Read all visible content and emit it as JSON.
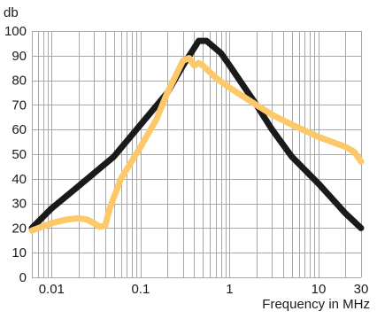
{
  "chart_data": {
    "type": "line",
    "title": "",
    "xlabel": "Frequency in MHz",
    "ylabel": "db",
    "xscale": "log",
    "xlim": [
      0.006,
      30
    ],
    "ylim": [
      0,
      100
    ],
    "grid": true,
    "legend": "none",
    "x_ticks": [
      {
        "value": 0.01,
        "label": "0.01"
      },
      {
        "value": 0.1,
        "label": "0.1"
      },
      {
        "value": 1,
        "label": "1"
      },
      {
        "value": 10,
        "label": "10"
      },
      {
        "value": 30,
        "label": "30"
      }
    ],
    "y_ticks": [
      {
        "value": 0,
        "label": "0"
      },
      {
        "value": 10,
        "label": "10"
      },
      {
        "value": 20,
        "label": "20"
      },
      {
        "value": 30,
        "label": "30"
      },
      {
        "value": 40,
        "label": "40"
      },
      {
        "value": 50,
        "label": "50"
      },
      {
        "value": 60,
        "label": "60"
      },
      {
        "value": 70,
        "label": "70"
      },
      {
        "value": 80,
        "label": "80"
      },
      {
        "value": 90,
        "label": "90"
      },
      {
        "value": 100,
        "label": "100"
      }
    ],
    "series": [
      {
        "color": "#1a1a1a",
        "points": [
          {
            "x": 0.006,
            "y": 20
          },
          {
            "x": 0.01,
            "y": 28
          },
          {
            "x": 0.02,
            "y": 37
          },
          {
            "x": 0.05,
            "y": 49
          },
          {
            "x": 0.1,
            "y": 62
          },
          {
            "x": 0.2,
            "y": 75
          },
          {
            "x": 0.3,
            "y": 86
          },
          {
            "x": 0.45,
            "y": 96
          },
          {
            "x": 0.55,
            "y": 96
          },
          {
            "x": 0.8,
            "y": 91
          },
          {
            "x": 1,
            "y": 86
          },
          {
            "x": 2,
            "y": 70
          },
          {
            "x": 3,
            "y": 60
          },
          {
            "x": 5,
            "y": 49
          },
          {
            "x": 10,
            "y": 38
          },
          {
            "x": 20,
            "y": 26
          },
          {
            "x": 30,
            "y": 20
          }
        ]
      },
      {
        "color": "#fcc86a",
        "points": [
          {
            "x": 0.006,
            "y": 19
          },
          {
            "x": 0.01,
            "y": 22
          },
          {
            "x": 0.015,
            "y": 23.5
          },
          {
            "x": 0.02,
            "y": 24
          },
          {
            "x": 0.025,
            "y": 23.5
          },
          {
            "x": 0.03,
            "y": 22
          },
          {
            "x": 0.035,
            "y": 20.5
          },
          {
            "x": 0.04,
            "y": 21
          },
          {
            "x": 0.045,
            "y": 28
          },
          {
            "x": 0.06,
            "y": 40
          },
          {
            "x": 0.1,
            "y": 53
          },
          {
            "x": 0.15,
            "y": 64
          },
          {
            "x": 0.2,
            "y": 75
          },
          {
            "x": 0.3,
            "y": 88
          },
          {
            "x": 0.35,
            "y": 89
          },
          {
            "x": 0.4,
            "y": 86
          },
          {
            "x": 0.45,
            "y": 87
          },
          {
            "x": 0.5,
            "y": 86
          },
          {
            "x": 0.7,
            "y": 81
          },
          {
            "x": 1,
            "y": 77
          },
          {
            "x": 2,
            "y": 70
          },
          {
            "x": 3,
            "y": 66
          },
          {
            "x": 5,
            "y": 62
          },
          {
            "x": 10,
            "y": 57
          },
          {
            "x": 20,
            "y": 53
          },
          {
            "x": 25,
            "y": 51
          },
          {
            "x": 30,
            "y": 47
          }
        ]
      }
    ]
  }
}
